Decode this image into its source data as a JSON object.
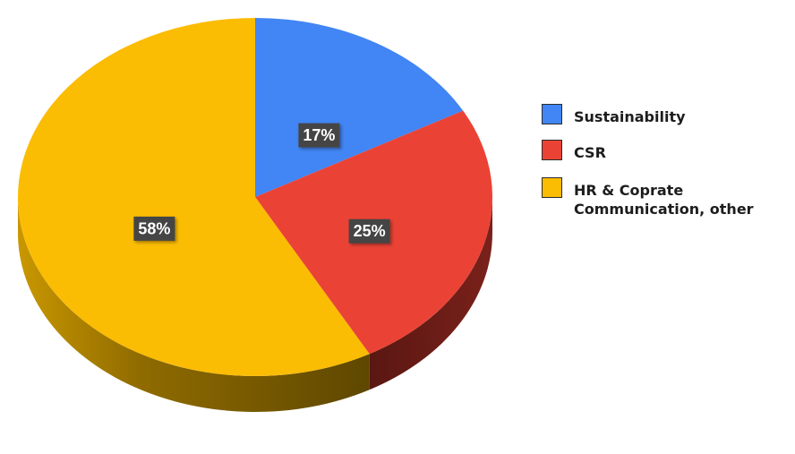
{
  "chart_data": {
    "type": "pie",
    "title": "",
    "series": [
      {
        "name": "Sustainability",
        "value": 17,
        "label": "17%",
        "color": "#4285f4",
        "side_color": "#2a5caf"
      },
      {
        "name": "CSR",
        "value": 25,
        "label": "25%",
        "color": "#ea4335",
        "side_color": "#6b1c16"
      },
      {
        "name": "HR & Coprate Communication, other",
        "value": 58,
        "label": "58%",
        "color": "#fbbc04",
        "side_color": "#8a6800"
      }
    ],
    "legend_position": "right",
    "style": "3d"
  },
  "legend": {
    "items": [
      {
        "label": "Sustainability",
        "color": "#4285f4"
      },
      {
        "label": "CSR",
        "color": "#ea4335"
      },
      {
        "label": "HR & Coprate\nCommunication, other",
        "color": "#fbbc04"
      }
    ]
  }
}
